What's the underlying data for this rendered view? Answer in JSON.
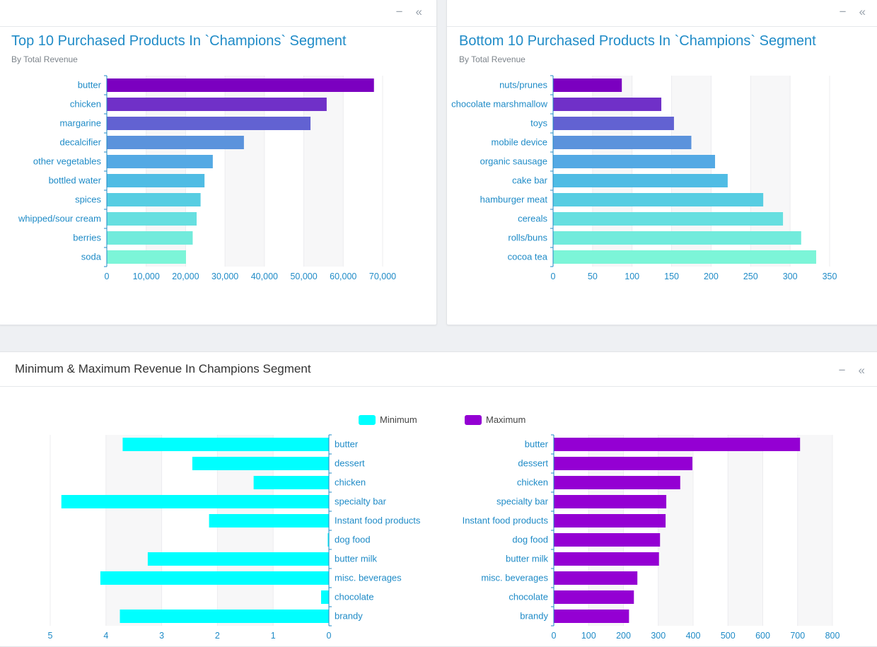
{
  "panels": {
    "top_left": {
      "title": "Top 10 Purchased Products In `Champions` Segment",
      "subtitle": "By Total Revenue"
    },
    "top_right": {
      "title": "Bottom 10 Purchased Products In `Champions` Segment",
      "subtitle": "By Total Revenue"
    },
    "bottom": {
      "title": "Minimum & Maximum Revenue In Champions Segment",
      "legend": [
        {
          "label": "Minimum",
          "color": "#00ffff"
        },
        {
          "label": "Maximum",
          "color": "#9400d3"
        }
      ]
    },
    "controls": {
      "minimize": "−",
      "collapse": "«"
    }
  },
  "chart_data": [
    {
      "type": "bar",
      "orientation": "horizontal",
      "title": "Top 10 Purchased Products In `Champions` Segment",
      "subtitle": "By Total Revenue",
      "categories": [
        "butter",
        "chicken",
        "margarine",
        "decalcifier",
        "other vegetables",
        "bottled water",
        "spices",
        "whipped/sour cream",
        "berries",
        "soda"
      ],
      "values": [
        67800,
        55800,
        51700,
        34800,
        26900,
        24800,
        23800,
        22800,
        21800,
        20100
      ],
      "xlim": [
        0,
        70000
      ],
      "ticks": [
        0,
        10000,
        20000,
        30000,
        40000,
        50000,
        60000,
        70000
      ],
      "tick_labels": [
        "0",
        "10,000",
        "20,000",
        "30,000",
        "40,000",
        "50,000",
        "60,000",
        "70,000"
      ],
      "colors": [
        "#7b00c0",
        "#7030c8",
        "#6262d2",
        "#5b93dc",
        "#54a9e4",
        "#4fbce4",
        "#57cde2",
        "#66dfe0",
        "#72ebdc",
        "#7cf5d8"
      ]
    },
    {
      "type": "bar",
      "orientation": "horizontal",
      "title": "Bottom 10 Purchased Products In `Champions` Segment",
      "subtitle": "By Total Revenue",
      "categories": [
        "nuts/prunes",
        "chocolate marshmallow",
        "toys",
        "mobile device",
        "organic sausage",
        "cake bar",
        "hamburger meat",
        "cereals",
        "rolls/buns",
        "cocoa tea"
      ],
      "values": [
        87,
        137,
        153,
        175,
        205,
        221,
        266,
        291,
        314,
        333
      ],
      "xlim": [
        0,
        350
      ],
      "ticks": [
        0,
        50,
        100,
        150,
        200,
        250,
        300,
        350
      ],
      "tick_labels": [
        "0",
        "50",
        "100",
        "150",
        "200",
        "250",
        "300",
        "350"
      ],
      "colors": [
        "#7b00c0",
        "#7030c8",
        "#6262d2",
        "#5b93dc",
        "#54a9e4",
        "#4fbce4",
        "#57cde2",
        "#66dfe0",
        "#72ebdc",
        "#7cf5d8"
      ]
    },
    {
      "type": "bar",
      "orientation": "horizontal",
      "direction": "right-to-left",
      "series_name": "Minimum",
      "categories": [
        "butter",
        "dessert",
        "chicken",
        "specialty bar",
        "Instant food products",
        "dog food",
        "butter milk",
        "misc. beverages",
        "chocolate",
        "brandy"
      ],
      "values": [
        3.7,
        2.45,
        1.35,
        4.8,
        2.15,
        0.02,
        3.25,
        4.1,
        0.14,
        3.75
      ],
      "xlim": [
        0,
        5
      ],
      "ticks": [
        5,
        4,
        3,
        2,
        1,
        0
      ],
      "tick_labels": [
        "5",
        "4",
        "3",
        "2",
        "1",
        "0"
      ],
      "color": "#00ffff"
    },
    {
      "type": "bar",
      "orientation": "horizontal",
      "series_name": "Maximum",
      "categories": [
        "butter",
        "dessert",
        "chicken",
        "specialty bar",
        "Instant food products",
        "dog food",
        "butter milk",
        "misc. beverages",
        "chocolate",
        "brandy"
      ],
      "values": [
        707,
        398,
        363,
        323,
        321,
        305,
        302,
        240,
        230,
        216
      ],
      "xlim": [
        0,
        800
      ],
      "ticks": [
        0,
        100,
        200,
        300,
        400,
        500,
        600,
        700,
        800
      ],
      "tick_labels": [
        "0",
        "100",
        "200",
        "300",
        "400",
        "500",
        "600",
        "700",
        "800"
      ],
      "color": "#9400d3"
    }
  ]
}
